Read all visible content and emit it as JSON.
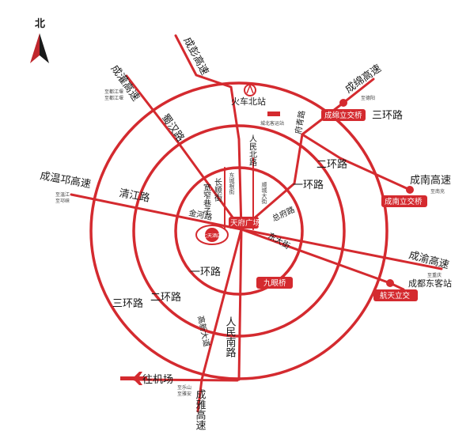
{
  "map": {
    "accent_color": "#d42a2f",
    "compass": {
      "label": "北"
    },
    "ring_roads": {
      "third": "三环路",
      "second": "二环路",
      "second_east": "二环路",
      "first": "一环路",
      "first_east": "一环路"
    },
    "expressways": {
      "chengpeng": "成彭高速",
      "chengguan": "成灌高速",
      "chengguan_sub": "至都江堰",
      "chengguan_sub2": "至都江堰",
      "chengmian": "成绵高速",
      "chengmian_sub": "至德阳",
      "chengwenqiong": "成温邛高速",
      "chengwenqiong_sub": "至温江",
      "chengwenqiong_sub2": "至邛崃",
      "chengnan": "成南高速",
      "chengnan_sub": "至南充",
      "chengyu": "成渝高速",
      "chengyu_sub": "至重庆",
      "chengya": "成雅高速",
      "chengya_sub": "至乐山",
      "chengya_sub2": "至雅安"
    },
    "roads": {
      "shuhan": "蜀汉路",
      "qingjiang": "清江路",
      "renmin_north": "人民北路",
      "renmin_south": "人民南路",
      "gaoxin": "高新大道",
      "fuqing": "府青路",
      "zongfu": "总府路",
      "dongda": "东大街",
      "jinhe": "金河路",
      "shuncheng": "顺城大街",
      "dongcheng": "东城根街",
      "changshun": "长顺街",
      "kuanzhai": "宽窄巷子"
    },
    "places": {
      "train_station": "火车北站",
      "bus_station": "城北客运站",
      "tianfu_square": "天府广场",
      "hotel_logo_text": "七天酒店",
      "chengdu_east": "成都东客站",
      "airport": "往机场"
    },
    "interchanges": {
      "chengmian_bridge": "成绵立交桥",
      "chengnan_bridge": "成南立交桥",
      "jiuyan_bridge": "九眼桥",
      "hangtian": "航天立交"
    }
  }
}
